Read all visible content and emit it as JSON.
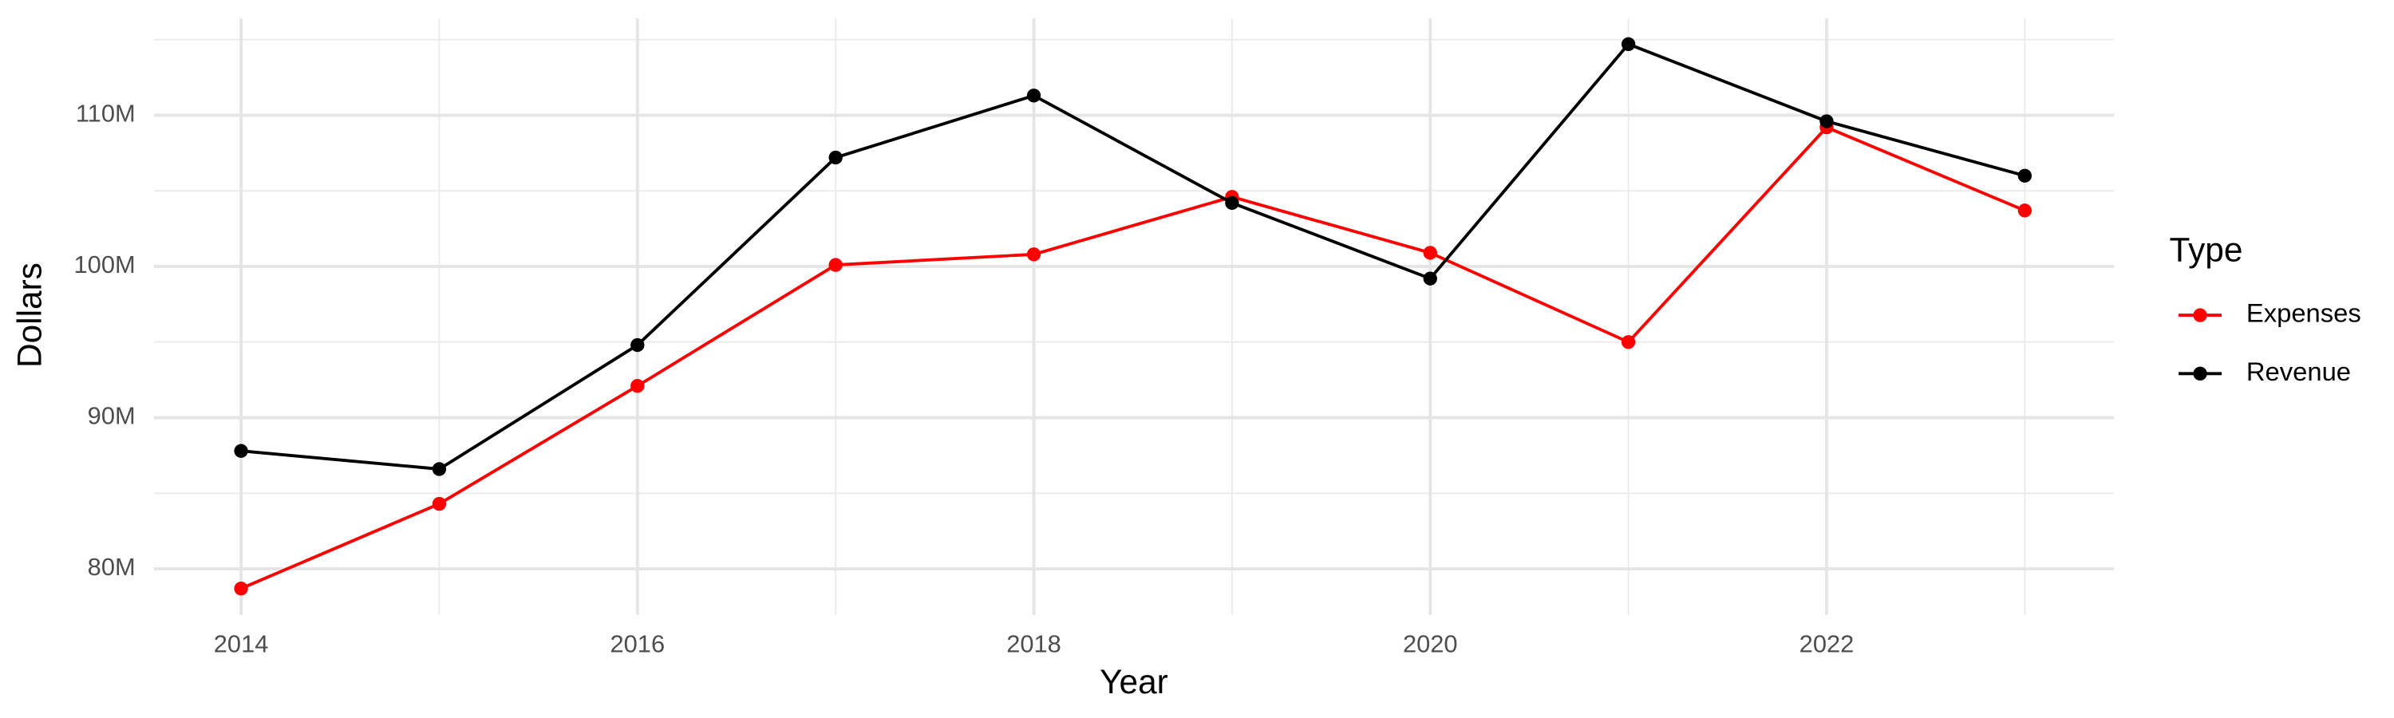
{
  "chart_data": {
    "type": "line",
    "x_label": "Year",
    "y_label": "Dollars",
    "x": [
      2014,
      2015,
      2016,
      2017,
      2018,
      2019,
      2020,
      2021,
      2022,
      2023
    ],
    "series": [
      {
        "name": "Expenses",
        "color": "#ff0000",
        "values": [
          78700000,
          84300000,
          92100000,
          100100000,
          100800000,
          104600000,
          100900000,
          95000000,
          109200000,
          103700000
        ]
      },
      {
        "name": "Revenue",
        "color": "#000000",
        "values": [
          87800000,
          86600000,
          94800000,
          107200000,
          111300000,
          104200000,
          99200000,
          114700000,
          109600000,
          106000000
        ]
      }
    ],
    "xlim": [
      2013.56,
      2023.45
    ],
    "ylim": [
      76950000,
      116400000
    ],
    "xticks": [
      2014,
      2016,
      2018,
      2020,
      2022
    ],
    "yticks": [
      {
        "value": 80000000,
        "label": "80M"
      },
      {
        "value": 90000000,
        "label": "90M"
      },
      {
        "value": 100000000,
        "label": "100M"
      },
      {
        "value": 110000000,
        "label": "110M"
      }
    ],
    "legend_title": "Type",
    "legend_position": "right",
    "grid": true
  }
}
